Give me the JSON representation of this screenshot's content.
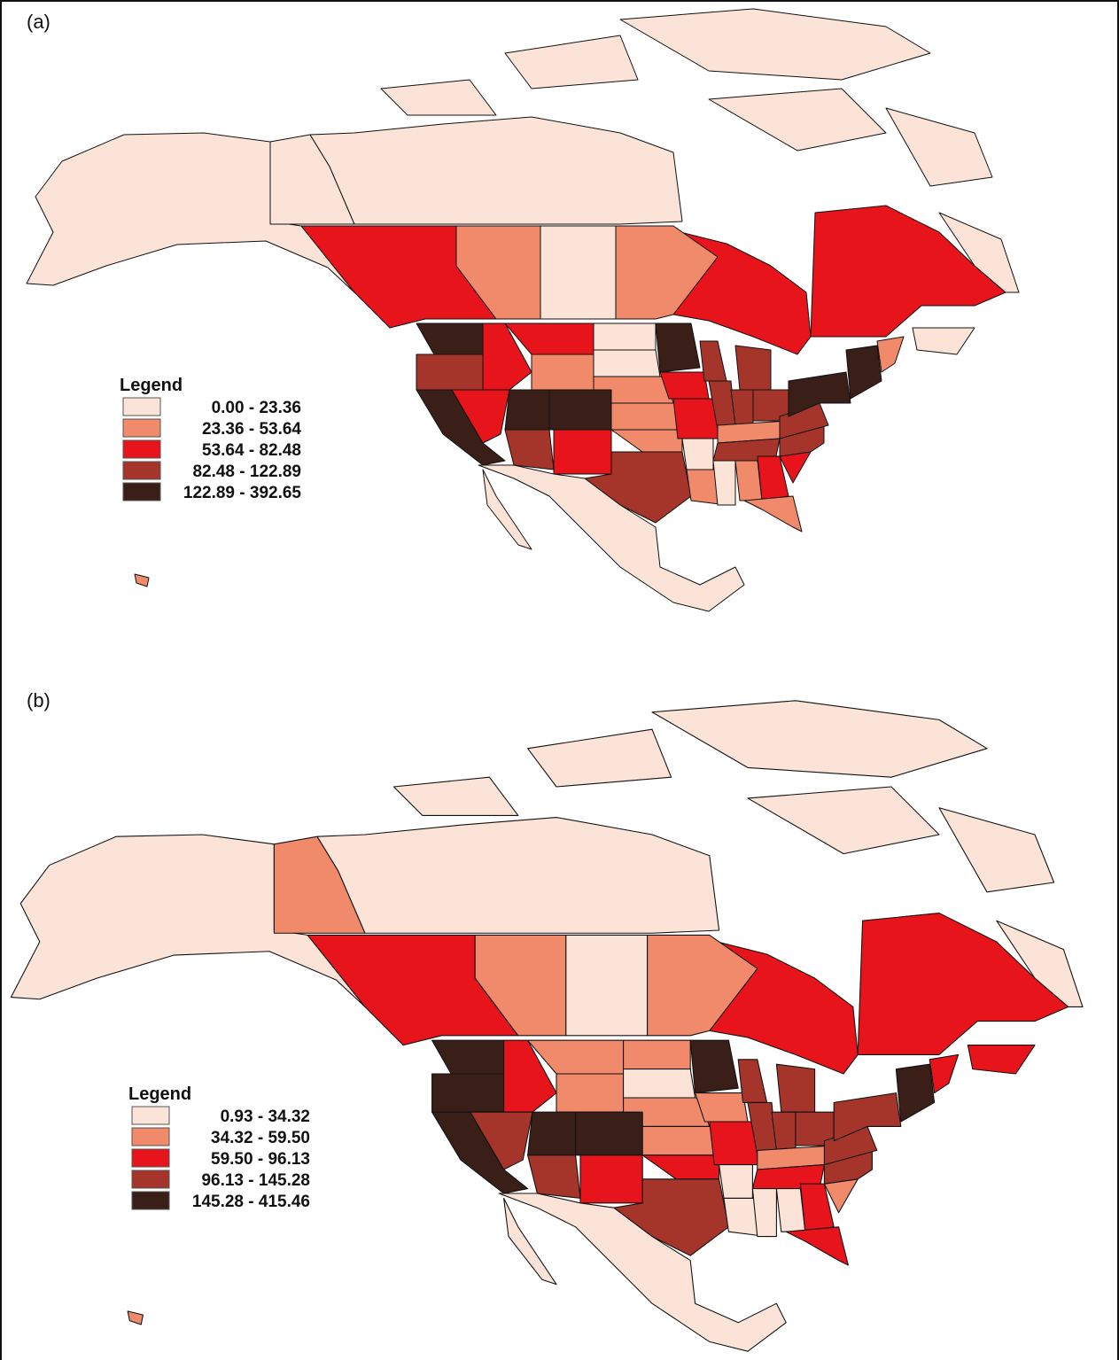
{
  "panels": [
    {
      "label": "(a)",
      "legend": {
        "title": "Legend",
        "items": [
          {
            "label": "0.00 - 23.36",
            "color": "#fce3d8"
          },
          {
            "label": "23.36 - 53.64",
            "color": "#f08a6a"
          },
          {
            "label": "53.64 - 82.48",
            "color": "#e8141b"
          },
          {
            "label": "82.48 - 122.89",
            "color": "#a5352a"
          },
          {
            "label": "122.89 - 392.65",
            "color": "#3a1e18"
          }
        ]
      }
    },
    {
      "label": "(b)",
      "legend": {
        "title": "Legend",
        "items": [
          {
            "label": "0.93 - 34.32",
            "color": "#fce3d8"
          },
          {
            "label": "34.32 - 59.50",
            "color": "#f08a6a"
          },
          {
            "label": "59.50 - 96.13",
            "color": "#e8141b"
          },
          {
            "label": "96.13 - 145.28",
            "color": "#a5352a"
          },
          {
            "label": "145.28 - 415.46",
            "color": "#3a1e18"
          }
        ]
      }
    }
  ]
}
